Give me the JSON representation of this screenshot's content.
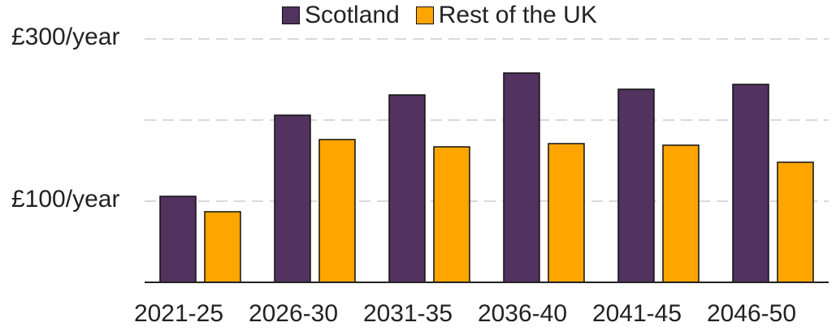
{
  "chart_data": {
    "type": "bar",
    "categories": [
      "2021-25",
      "2026-30",
      "2031-35",
      "2036-40",
      "2041-45",
      "2046-50"
    ],
    "series": [
      {
        "name": "Scotland",
        "values": [
          106,
          206,
          231,
          258,
          238,
          244
        ]
      },
      {
        "name": "Rest of the UK",
        "values": [
          87,
          176,
          167,
          171,
          169,
          148
        ]
      }
    ],
    "colors": {
      "Scotland": "#52325f",
      "Rest of the UK": "#ffa500"
    },
    "yticks": [
      {
        "value": 300,
        "label": "£300/year"
      },
      {
        "value": 100,
        "label": "£100/year"
      }
    ],
    "ylim": [
      0,
      300
    ],
    "grid": true,
    "legend": "top-center",
    "title": "",
    "xlabel": "",
    "ylabel": ""
  }
}
